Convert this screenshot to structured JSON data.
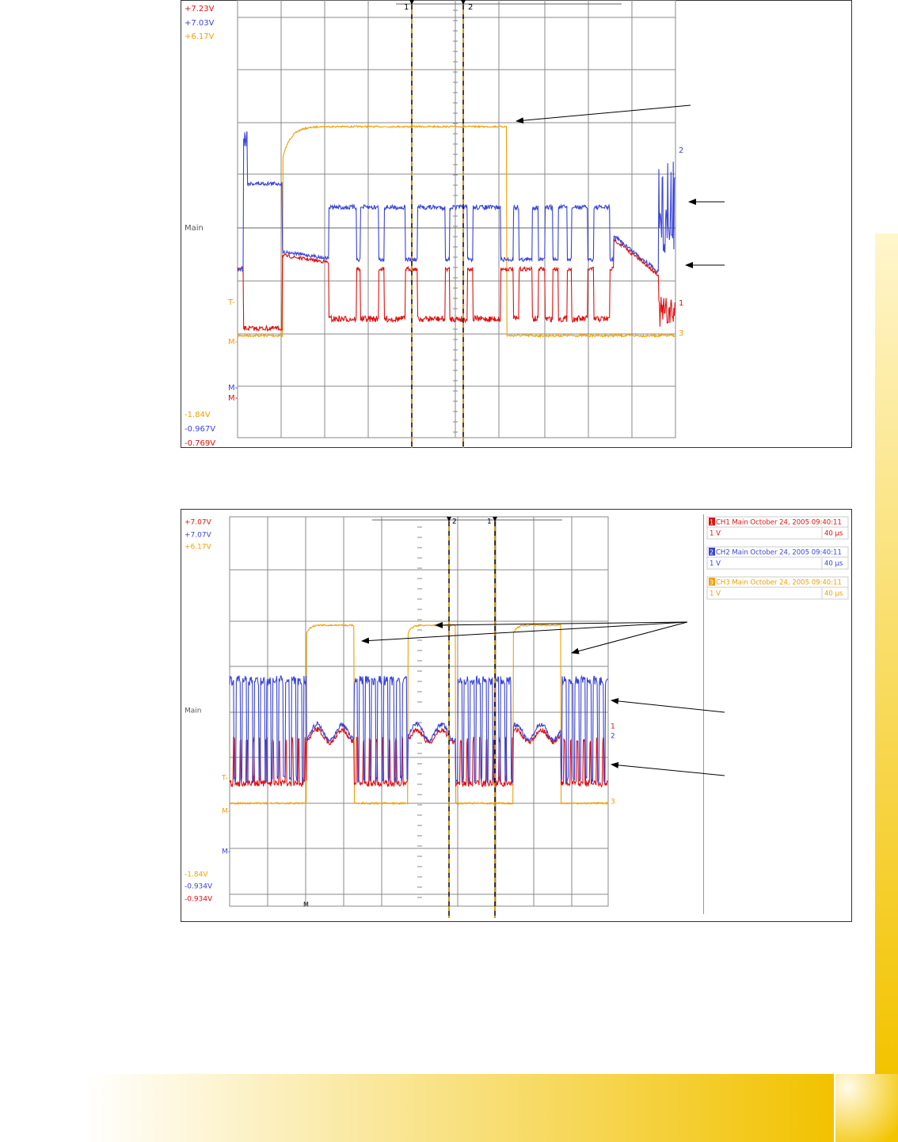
{
  "scope1": {
    "top_labels": [
      "+7.23V",
      "+7.03V",
      "+6.17V"
    ],
    "bottom_labels": [
      "-1.84V",
      "-0.967V",
      "-0.769V"
    ],
    "center_label": "Main",
    "left_markers": [
      "T-",
      "M-",
      "M-",
      "M-"
    ],
    "cursors": [
      "1",
      "2"
    ],
    "channel_tags": [
      "2",
      "1",
      "3"
    ]
  },
  "scope2": {
    "top_labels": [
      "+7.07V",
      "+7.07V",
      "+6.17V"
    ],
    "bottom_labels": [
      "-1.84V",
      "-0.934V",
      "-0.934V"
    ],
    "center_label": "Main",
    "left_markers": [
      "T-",
      "M-",
      "M-"
    ],
    "bottom_marker": "M",
    "cursors": [
      "2",
      "1"
    ],
    "channel_tags": [
      "1",
      "2",
      "3"
    ],
    "legend": [
      {
        "tag": "1",
        "title": "CH1 Main October 24, 2005  09:40:11",
        "scale": "1 V",
        "time": "40 µs"
      },
      {
        "tag": "2",
        "title": "CH2 Main October 24, 2005  09:40:11",
        "scale": "1 V",
        "time": "40 µs"
      },
      {
        "tag": "3",
        "title": "CH3 Main October 24, 2005  09:40:11",
        "scale": "1 V",
        "time": "40 µs"
      }
    ]
  }
}
